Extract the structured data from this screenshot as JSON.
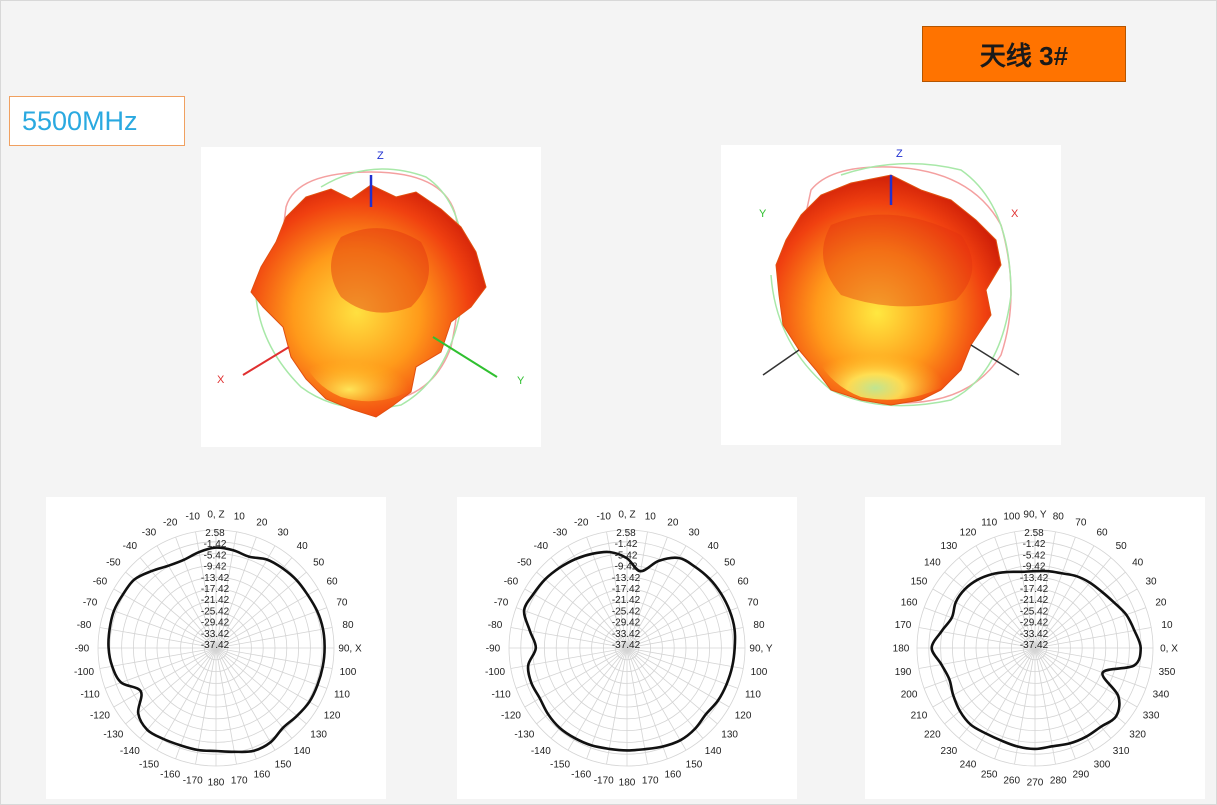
{
  "header": {
    "antenna_label": "天线 3#"
  },
  "frequency": {
    "label": "5500MHz"
  },
  "views_3d": [
    {
      "axis_labels": {
        "z": "Z",
        "x": "X",
        "y": "Y"
      }
    },
    {
      "axis_labels": {
        "z": "Z",
        "x": "X",
        "y": "Y"
      }
    }
  ],
  "colors": {
    "badge": "#ff7300",
    "freq_text": "#2aa9e0",
    "pattern_line": "#111111"
  },
  "chart_data": [
    {
      "type": "polar-line",
      "plane": "XZ",
      "angle_labels": [
        "0, Z",
        "10",
        "20",
        "30",
        "40",
        "50",
        "60",
        "70",
        "80",
        "90, X",
        "100",
        "110",
        "120",
        "130",
        "140",
        "150",
        "160",
        "170",
        "180",
        "-170",
        "-160",
        "-150",
        "-140",
        "-130",
        "-120",
        "-110",
        "-100",
        "-90",
        "-80",
        "-70",
        "-60",
        "-50",
        "-40",
        "-30",
        "-20",
        "-10"
      ],
      "ring_labels": [
        "2.58",
        "-1.42",
        "-5.42",
        "-9.42",
        "-13.42",
        "-17.42",
        "-21.42",
        "-25.42",
        "-29.42",
        "-33.42",
        "-37.42"
      ],
      "rlim": [
        -37.42,
        2.58
      ],
      "angles_deg": [
        0,
        10,
        20,
        30,
        40,
        50,
        60,
        70,
        80,
        90,
        100,
        110,
        120,
        130,
        140,
        150,
        160,
        170,
        180,
        190,
        200,
        210,
        220,
        230,
        240,
        250,
        260,
        270,
        280,
        290,
        300,
        310,
        320,
        330,
        340,
        350
      ],
      "gain_db": [
        -3.4,
        -3.8,
        -4.5,
        -2.8,
        -2.2,
        -1.7,
        -1.5,
        -0.9,
        -0.6,
        -0.6,
        -0.7,
        -0.8,
        -0.9,
        -1.6,
        -2.1,
        -0.5,
        -0.3,
        -1.7,
        -2.5,
        -2.3,
        -2.3,
        -1.8,
        -1.2,
        -3.0,
        -8.0,
        -3.2,
        -1.7,
        -1.0,
        -0.8,
        -0.6,
        -1.0,
        -1.3,
        -3.4,
        -5.2,
        -5.6,
        -4.4
      ]
    },
    {
      "type": "polar-line",
      "plane": "YZ",
      "angle_labels": [
        "0, Z",
        "10",
        "20",
        "30",
        "40",
        "50",
        "60",
        "70",
        "80",
        "90, Y",
        "100",
        "110",
        "120",
        "130",
        "140",
        "150",
        "160",
        "170",
        "180",
        "-170",
        "-160",
        "-150",
        "-140",
        "-130",
        "-120",
        "-110",
        "-100",
        "-90",
        "-80",
        "-70",
        "-60",
        "-50",
        "-40",
        "-30",
        "-20",
        "-10"
      ],
      "ring_labels": [
        "2.58",
        "-1.42",
        "-5.42",
        "-9.42",
        "-13.42",
        "-17.42",
        "-21.42",
        "-25.42",
        "-29.42",
        "-33.42",
        "-37.42"
      ],
      "rlim": [
        -37.42,
        2.58
      ],
      "angles_deg": [
        0,
        10,
        20,
        30,
        40,
        50,
        60,
        70,
        80,
        90,
        100,
        110,
        120,
        130,
        140,
        150,
        160,
        170,
        180,
        190,
        200,
        210,
        220,
        230,
        240,
        250,
        260,
        270,
        280,
        290,
        300,
        310,
        320,
        330,
        340,
        350
      ],
      "gain_db": [
        -7.0,
        -11.0,
        -6.0,
        -2.2,
        -1.5,
        -0.9,
        -0.6,
        -0.4,
        -0.4,
        -0.9,
        -1.2,
        -1.5,
        -1.8,
        -2.5,
        -1.6,
        -1.3,
        -1.9,
        -2.6,
        -2.7,
        -2.7,
        -2.3,
        -2.1,
        -2.0,
        -2.5,
        -3.3,
        -2.9,
        -3.4,
        -6.5,
        -4.0,
        -0.3,
        -0.8,
        -1.2,
        -1.9,
        -2.6,
        -3.4,
        -4.4
      ]
    },
    {
      "type": "polar-line",
      "plane": "XY",
      "angle_labels": [
        "0, X",
        "10",
        "20",
        "30",
        "40",
        "50",
        "60",
        "70",
        "80",
        "90, Y",
        "100",
        "110",
        "120",
        "130",
        "140",
        "150",
        "160",
        "170",
        "180",
        "190",
        "200",
        "210",
        "220",
        "230",
        "240",
        "250",
        "260",
        "270",
        "280",
        "290",
        "300",
        "310",
        "320",
        "330",
        "340",
        "350"
      ],
      "ring_labels": [
        "2.58",
        "-1.42",
        "-5.42",
        "-9.42",
        "-13.42",
        "-17.42",
        "-21.42",
        "-25.42",
        "-29.42",
        "-33.42",
        "-37.42"
      ],
      "rlim": [
        -37.42,
        2.58
      ],
      "angles_deg": [
        0,
        10,
        20,
        30,
        40,
        50,
        60,
        70,
        80,
        90,
        100,
        110,
        120,
        130,
        140,
        150,
        160,
        170,
        180,
        190,
        200,
        210,
        220,
        230,
        240,
        250,
        260,
        270,
        280,
        290,
        300,
        310,
        320,
        330,
        340,
        350
      ],
      "gain_db": [
        -1.6,
        -3.2,
        -4.5,
        -6.5,
        -7.8,
        -8.5,
        -9.3,
        -10.5,
        -11.0,
        -11.4,
        -11.2,
        -10.0,
        -8.5,
        -7.2,
        -6.4,
        -6.4,
        -7.4,
        -5.2,
        -2.4,
        -5.2,
        -6.5,
        -5.4,
        -4.2,
        -3.5,
        -4.0,
        -4.0,
        -3.5,
        -3.2,
        -3.6,
        -3.0,
        -2.7,
        -2.6,
        -1.5,
        -4.8,
        -13.0,
        -3.3
      ]
    }
  ]
}
